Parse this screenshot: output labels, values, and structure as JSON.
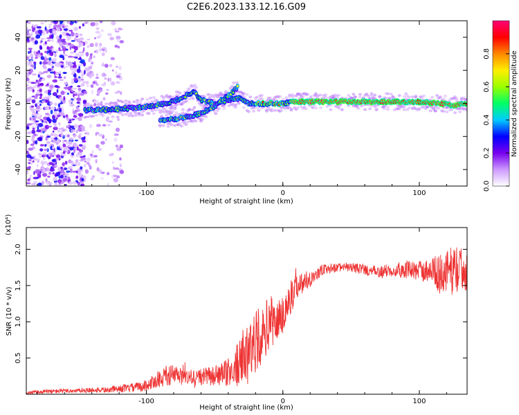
{
  "figure": {
    "title": "C2E6.2023.133.12.16.G09"
  },
  "chart_data": [
    {
      "type": "heatmap",
      "title": "C2E6.2023.133.12.16.G09",
      "xlabel": "Height of straight line (km)",
      "ylabel": "Frequency (Hz)",
      "xlim": [
        -188,
        135
      ],
      "ylim": [
        -50,
        50
      ],
      "xticks": [
        -100,
        0,
        100
      ],
      "xtick_labels": [
        "-100",
        "0",
        "100"
      ],
      "yticks": [
        -40,
        -20,
        0,
        20,
        40
      ],
      "ytick_labels": [
        "-40",
        "-20",
        "0",
        "20",
        "40"
      ],
      "grid": false,
      "colorbar": {
        "label": "Normalized spectral amplitude",
        "range": [
          0,
          1
        ],
        "ticks": [
          0.0,
          0.2,
          0.4,
          0.6,
          0.8
        ],
        "tick_labels": [
          "0.0",
          "0.2",
          "0.4",
          "0.6",
          "0.8"
        ],
        "colors": [
          "#ffffff",
          "#cc99ff",
          "#7700ee",
          "#0000ff",
          "#00ccff",
          "#00ff66",
          "#99ff00",
          "#ffee00",
          "#ff8800",
          "#ff0000",
          "#ff0077"
        ]
      },
      "tracks": [
        {
          "name": "upper branch",
          "points": [
            [
              -145,
              -4
            ],
            [
              -130,
              -4
            ],
            [
              -115,
              -3
            ],
            [
              -100,
              -2
            ],
            [
              -85,
              0
            ],
            [
              -75,
              3
            ],
            [
              -65,
              7
            ],
            [
              -60,
              2
            ],
            [
              -50,
              0
            ],
            [
              -40,
              2
            ],
            [
              -32,
              3
            ],
            [
              -25,
              0
            ],
            [
              -15,
              0
            ],
            [
              0,
              0
            ],
            [
              10,
              1
            ],
            [
              50,
              1
            ],
            [
              100,
              1
            ],
            [
              125,
              -1
            ],
            [
              135,
              0
            ]
          ]
        },
        {
          "name": "lower branch",
          "points": [
            [
              -90,
              -10
            ],
            [
              -75,
              -9
            ],
            [
              -60,
              -6
            ],
            [
              -50,
              -2
            ],
            [
              -45,
              2
            ],
            [
              -38,
              6
            ],
            [
              -33,
              10
            ]
          ]
        }
      ]
    },
    {
      "type": "line",
      "xlabel": "Height of straight line (km)",
      "ylabel": "SNR (10 * v/v)",
      "scale_label": "(x10⁴)",
      "xlim": [
        -188,
        135
      ],
      "ylim": [
        0.0,
        2.3
      ],
      "xticks": [
        -100,
        0,
        100
      ],
      "xtick_labels": [
        "-100",
        "0",
        "100"
      ],
      "yticks": [
        0.5,
        1.0,
        1.5,
        2.0
      ],
      "ytick_labels": [
        "0.5",
        "1.0",
        "1.5",
        "2.0"
      ],
      "grid": false,
      "series": [
        {
          "color": "#ee3333",
          "x": [
            -188,
            -170,
            -150,
            -130,
            -110,
            -100,
            -90,
            -80,
            -70,
            -60,
            -50,
            -45,
            -40,
            -35,
            -30,
            -25,
            -20,
            -15,
            -10,
            -5,
            0,
            5,
            10,
            20,
            30,
            40,
            50,
            60,
            70,
            80,
            90,
            100,
            110,
            115,
            120,
            125,
            130,
            135
          ],
          "y": [
            0.02,
            0.04,
            0.05,
            0.06,
            0.09,
            0.12,
            0.22,
            0.27,
            0.22,
            0.24,
            0.25,
            0.27,
            0.3,
            0.38,
            0.45,
            0.6,
            0.75,
            0.8,
            1.0,
            1.0,
            1.1,
            1.3,
            1.5,
            1.6,
            1.72,
            1.75,
            1.75,
            1.72,
            1.68,
            1.72,
            1.72,
            1.7,
            1.72,
            1.65,
            1.68,
            1.72,
            1.72,
            1.75
          ],
          "noise": [
            0.02,
            0.03,
            0.03,
            0.04,
            0.06,
            0.08,
            0.12,
            0.15,
            0.12,
            0.12,
            0.14,
            0.16,
            0.2,
            0.3,
            0.32,
            0.4,
            0.45,
            0.38,
            0.4,
            0.3,
            0.3,
            0.25,
            0.18,
            0.12,
            0.08,
            0.06,
            0.06,
            0.08,
            0.08,
            0.1,
            0.12,
            0.14,
            0.18,
            0.28,
            0.3,
            0.35,
            0.3,
            0.32
          ]
        }
      ]
    }
  ]
}
